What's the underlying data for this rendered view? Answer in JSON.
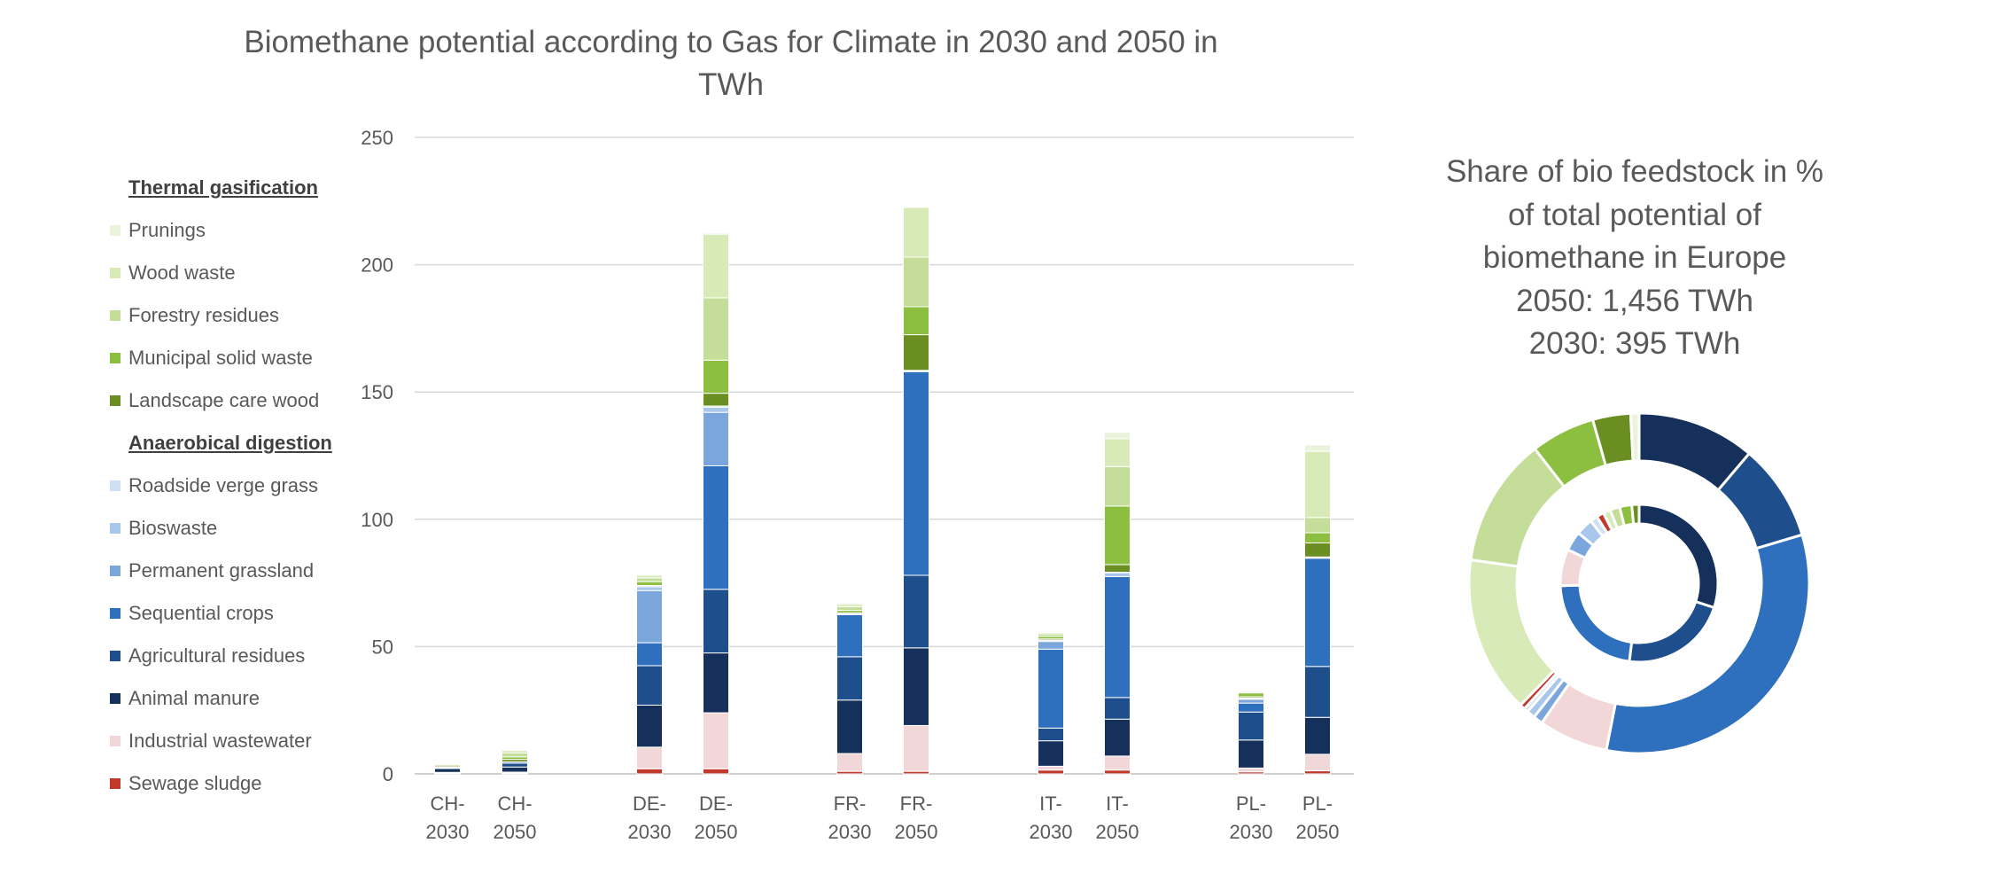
{
  "chart_data": [
    {
      "type": "bar",
      "stacked": true,
      "title": "Biomethane potential according to Gas for Climate in 2030 and 2050 in TWh",
      "title_lines": [
        "Biomethane potential according to Gas for Climate in 2030 and 2050 in",
        "TWh"
      ],
      "categories": [
        [
          "CH-",
          "2030"
        ],
        [
          "CH-",
          "2050"
        ],
        [
          "DE-",
          "2030"
        ],
        [
          "DE-",
          "2050"
        ],
        [
          "FR-",
          "2030"
        ],
        [
          "FR-",
          "2050"
        ],
        [
          "IT-",
          "2030"
        ],
        [
          "IT-",
          "2050"
        ],
        [
          "PL-",
          "2030"
        ],
        [
          "PL-",
          "2050"
        ]
      ],
      "ylim": [
        0,
        250
      ],
      "yticks": [
        "0",
        "50",
        "100",
        "150",
        "200",
        "250"
      ],
      "grid": true,
      "legend_position": "left",
      "legend_groups": [
        "Thermal gasification",
        "Anaerobical digestion"
      ],
      "series": [
        {
          "name": "Sewage sludge",
          "color": "#c0392b",
          "group": "Anaerobical digestion",
          "values": [
            0.3,
            0.3,
            2,
            2,
            1,
            1,
            1.5,
            1.5,
            0.8,
            1.2
          ]
        },
        {
          "name": "Industrial wastewater",
          "color": "#f2d7d9",
          "group": "Anaerobical digestion",
          "values": [
            0.3,
            0.4,
            8.5,
            22,
            7,
            18,
            1.5,
            5.5,
            1.5,
            6.5
          ]
        },
        {
          "name": "Animal manure",
          "color": "#15305a",
          "group": "Anaerobical digestion",
          "values": [
            1.5,
            2,
            16.5,
            23.5,
            21,
            30.5,
            10,
            14.5,
            11,
            14.5
          ]
        },
        {
          "name": "Agricultural residues",
          "color": "#1f4e8c",
          "group": "Anaerobical digestion",
          "values": [
            0.3,
            1.5,
            15.5,
            25,
            17,
            28.5,
            5,
            8.5,
            11,
            20
          ]
        },
        {
          "name": "Sequential crops",
          "color": "#2e6fbe",
          "group": "Anaerobical digestion",
          "values": [
            0.2,
            0.5,
            9,
            48.5,
            16.5,
            80,
            31,
            47.5,
            3.5,
            42.5
          ]
        },
        {
          "name": "Permanent grassland",
          "color": "#7aa6dc",
          "group": "Anaerobical digestion",
          "values": [
            0,
            0,
            20.5,
            21,
            0,
            0,
            3,
            0,
            1.5,
            0
          ]
        },
        {
          "name": "Bioswaste",
          "color": "#a9c6eb",
          "group": "Anaerobical digestion",
          "values": [
            0,
            0,
            1.5,
            2,
            0.5,
            0.3,
            0.5,
            1.5,
            0.3,
            0.3
          ]
        },
        {
          "name": "Roadside verge grass",
          "color": "#cfe0f4",
          "group": "Anaerobical digestion",
          "values": [
            0,
            0,
            0.5,
            0.5,
            0.2,
            0.2,
            0,
            0.2,
            0.2,
            0.2
          ]
        },
        {
          "name": "Landscape care wood",
          "color": "#6b8e23",
          "group": "Thermal gasification",
          "values": [
            0.5,
            1,
            0,
            5,
            0,
            14,
            0.5,
            3,
            0.5,
            5.5
          ]
        },
        {
          "name": "Municipal solid waste",
          "color": "#8cbf3f",
          "group": "Thermal gasification",
          "values": [
            0.5,
            1,
            1.5,
            13,
            1,
            11,
            1,
            23,
            1.5,
            4
          ]
        },
        {
          "name": "Forestry residues",
          "color": "#c4de9a",
          "group": "Thermal gasification",
          "values": [
            0.3,
            1.5,
            1.5,
            24.5,
            1.5,
            19.5,
            1,
            15.5,
            0.5,
            6
          ]
        },
        {
          "name": "Wood waste",
          "color": "#d9eab9",
          "group": "Thermal gasification",
          "values": [
            0.2,
            1,
            1,
            25,
            1,
            19.5,
            0.5,
            11,
            0.3,
            26
          ]
        },
        {
          "name": "Prunings",
          "color": "#ebf3dc",
          "group": "Thermal gasification",
          "values": [
            0,
            0.3,
            0.5,
            0.5,
            0.5,
            0.3,
            0.3,
            2.5,
            0.2,
            2.5
          ]
        }
      ],
      "legend_order": [
        "Prunings",
        "Wood waste",
        "Forestry residues",
        "Municipal solid waste",
        "Landscape care wood",
        "Roadside verge grass",
        "Bioswaste",
        "Permanent grassland",
        "Sequential crops",
        "Agricultural residues",
        "Animal manure",
        "Industrial wastewater",
        "Sewage sludge"
      ]
    },
    {
      "type": "pie",
      "donut": true,
      "title": "Share of bio feedstock in % of total potential of biomethane in Europe 2050: 1,456 TWh 2030: 395 TWh",
      "title_lines": [
        "Share of bio feedstock in %",
        "of total potential of",
        "biomethane in Europe",
        "2050: 1,456 TWh",
        "2030: 395 TWh"
      ],
      "rings": [
        {
          "name": "2050",
          "position": "outer",
          "slices": [
            {
              "label": "Animal manure",
              "value": 11.2,
              "color": "#15305a"
            },
            {
              "label": "Agricultural residues",
              "value": 9.2,
              "color": "#1f4e8c"
            },
            {
              "label": "Sequential crops",
              "value": 32.7,
              "color": "#2e6fbe"
            },
            {
              "label": "Industrial wastewater",
              "value": 6.6,
              "color": "#f2d7d9"
            },
            {
              "label": "Permanent grassland",
              "value": 0.9,
              "color": "#7aa6dc"
            },
            {
              "label": "Bioswaste",
              "value": 0.8,
              "color": "#a9c6eb"
            },
            {
              "label": "Roadside verge grass",
              "value": 0.4,
              "color": "#cfe0f4"
            },
            {
              "label": "Sewage sludge",
              "value": 0.5,
              "color": "#c0392b"
            },
            {
              "label": "Wood waste",
              "value": 14.9,
              "color": "#d9eab9"
            },
            {
              "label": "Forestry residues",
              "value": 12.3,
              "color": "#c4de9a"
            },
            {
              "label": "Municipal solid waste",
              "value": 6.1,
              "color": "#8cbf3f"
            },
            {
              "label": "Landscape care wood",
              "value": 3.6,
              "color": "#6b8e23"
            },
            {
              "label": "Prunings",
              "value": 0.8,
              "color": "#ebf3dc"
            }
          ]
        },
        {
          "name": "2030",
          "position": "inner",
          "slices": [
            {
              "label": "Animal manure",
              "value": 30,
              "color": "#15305a"
            },
            {
              "label": "Agricultural residues",
              "value": 22,
              "color": "#1f4e8c"
            },
            {
              "label": "Sequential crops",
              "value": 22.5,
              "color": "#2e6fbe"
            },
            {
              "label": "Industrial wastewater",
              "value": 7.5,
              "color": "#f2d7d9"
            },
            {
              "label": "Permanent grassland",
              "value": 4,
              "color": "#7aa6dc"
            },
            {
              "label": "Bioswaste",
              "value": 3.5,
              "color": "#a9c6eb"
            },
            {
              "label": "Roadside verge grass",
              "value": 1.5,
              "color": "#cfe0f4"
            },
            {
              "label": "Sewage sludge",
              "value": 1.5,
              "color": "#c0392b"
            },
            {
              "label": "Wood waste",
              "value": 1.5,
              "color": "#d9eab9"
            },
            {
              "label": "Forestry residues",
              "value": 2,
              "color": "#c4de9a"
            },
            {
              "label": "Municipal solid waste",
              "value": 2.5,
              "color": "#8cbf3f"
            },
            {
              "label": "Landscape care wood",
              "value": 1.5,
              "color": "#6b8e23"
            }
          ]
        }
      ]
    }
  ]
}
